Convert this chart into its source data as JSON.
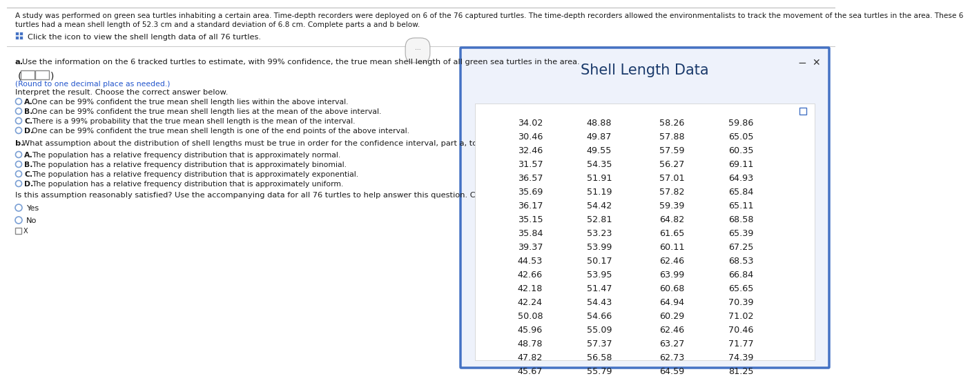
{
  "header_line1": "A study was performed on green sea turtles inhabiting a certain area. Time-depth recorders were deployed on 6 of the 76 captured turtles. The time-depth recorders allowed the environmentalists to track the movement of the sea turtles in the area. These 6",
  "header_line2": "turtles had a mean shell length of 52.3 cm and a standard deviation of 6.8 cm. Complete parts a and b below.",
  "icon_text": "Click the icon to view the shell length data of all 76 turtles.",
  "part_a_text": "a. Use the information on the 6 tracked turtles to estimate, with 99% confidence, the true mean shell length of all green sea turtles in the area.",
  "round_note": "(Round to one decimal place as needed.)",
  "interpret_label": "Interpret the result. Choose the correct answer below.",
  "options_a": [
    "One can be 99% confident the true mean shell length lies within the above interval.",
    "One can be 99% confident the true mean shell length lies at the mean of the above interval.",
    "There is a 99% probability that the true mean shell length is the mean of the interval.",
    "One can be 99% confident the true mean shell length is one of the end points of the above interval."
  ],
  "options_a_letters": [
    "A.",
    "B.",
    "C.",
    "D."
  ],
  "part_b_intro": "What assumption about the distribution of shell lengths must be true in order for the confidence interval, part",
  "part_b_intro2": ", to be valid?",
  "options_b": [
    "The population has a relative frequency distribution that is approximately normal.",
    "The population has a relative frequency distribution that is approximately binomial.",
    "The population has a relative frequency distribution that is approximately exponential.",
    "The population has a relative frequency distribution that is approximately uniform."
  ],
  "options_b_letters": [
    "A.",
    "B.",
    "C.",
    "D."
  ],
  "satisfied_text": "Is this assumption reasonably satisfied? Use the accompanying data for all 76 turtles to help answer this question. Choose the correct answer below.",
  "yes_no": [
    "Yes",
    "No"
  ],
  "dialog_title": "Shell Length Data",
  "table_data": [
    [
      34.02,
      48.88,
      58.26,
      59.86
    ],
    [
      30.46,
      49.87,
      57.88,
      65.05
    ],
    [
      32.46,
      49.55,
      57.59,
      60.35
    ],
    [
      31.57,
      54.35,
      56.27,
      69.11
    ],
    [
      36.57,
      51.91,
      57.01,
      64.93
    ],
    [
      35.69,
      51.19,
      57.82,
      65.84
    ],
    [
      36.17,
      54.42,
      59.39,
      65.11
    ],
    [
      35.15,
      52.81,
      64.82,
      68.58
    ],
    [
      35.84,
      53.23,
      61.65,
      65.39
    ],
    [
      39.37,
      53.99,
      60.11,
      67.25
    ],
    [
      44.53,
      50.17,
      62.46,
      68.53
    ],
    [
      42.66,
      53.95,
      63.99,
      66.84
    ],
    [
      42.18,
      51.47,
      60.68,
      65.65
    ],
    [
      42.24,
      54.43,
      64.94,
      70.39
    ],
    [
      50.08,
      54.66,
      60.29,
      71.02
    ],
    [
      45.96,
      55.09,
      62.46,
      70.46
    ],
    [
      48.78,
      57.37,
      63.27,
      71.77
    ],
    [
      47.82,
      56.58,
      62.73,
      74.39
    ],
    [
      45.67,
      55.79,
      64.59,
      81.25
    ]
  ],
  "bg_color": "#ffffff",
  "dialog_border": "#4472c4",
  "dialog_title_color": "#1a3a6b",
  "text_color": "#1a1a1a",
  "blue_text": "#2255cc",
  "radio_ec": "#7a9fd4",
  "icon_color": "#4472c4",
  "divider_color": "#cccccc"
}
